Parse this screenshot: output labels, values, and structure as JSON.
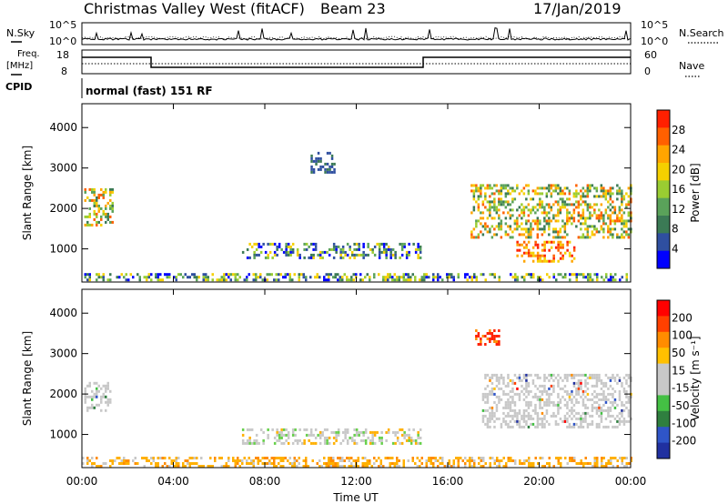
{
  "header": {
    "title": "Christmas Valley West (fitACF)",
    "beam": "Beam 23",
    "date": "17/Jan/2019"
  },
  "top_panels": {
    "nsky_label": "N.Sky",
    "nsearch_label": "N.Search",
    "nsky_ticks": [
      "10^5",
      "10^0"
    ],
    "nsearch_ticks": [
      "10^5",
      "10^0"
    ],
    "freq_label_1": "Freq.",
    "freq_label_2": "[MHz]",
    "freq_ticks": [
      "18",
      "8"
    ],
    "nave_label": "Nave",
    "nave_ticks": [
      "60",
      "0"
    ],
    "cpid_label": "CPID",
    "cpid_text": "normal (fast) 151 RF"
  },
  "colors": {
    "power": [
      "#0000ff",
      "#2f4fa0",
      "#3b7a55",
      "#5aa25a",
      "#9acd32",
      "#f5d000",
      "#ffa500",
      "#ff6000",
      "#ff2000"
    ],
    "velocity": [
      "#2030a0",
      "#2f55c8",
      "#2f7f3f",
      "#44c044",
      "#c8c8c8",
      "#c8c8c8",
      "#ffc000",
      "#ff8c00",
      "#ff4000",
      "#ff0000"
    ]
  },
  "chart_data": [
    {
      "type": "heatmap",
      "name": "power",
      "ylabel": "Slant Range [km]",
      "xlabel": "Time UT",
      "x_ticks": [
        "00:00",
        "04:00",
        "08:00",
        "12:00",
        "16:00",
        "20:00",
        "00:00"
      ],
      "y_ticks": [
        "1000",
        "2000",
        "3000",
        "4000"
      ],
      "ylim": [
        180,
        4590
      ],
      "xlim_hours": [
        0,
        24
      ],
      "colorbar": {
        "label": "Power [dB]",
        "ticks": [
          "28",
          "24",
          "20",
          "16",
          "12",
          "8",
          "4"
        ]
      },
      "echo_regions": [
        {
          "t0": 0.1,
          "t1": 1.3,
          "r0": 1600,
          "r1": 2500,
          "level": "mixed-high"
        },
        {
          "t0": 7.0,
          "t1": 14.8,
          "r0": 750,
          "r1": 1150,
          "level": "mixed"
        },
        {
          "t0": 10.0,
          "t1": 11.0,
          "r0": 2900,
          "r1": 3400,
          "level": "low"
        },
        {
          "t0": 17.0,
          "t1": 24.0,
          "r0": 1300,
          "r1": 2600,
          "level": "mixed-high"
        },
        {
          "t0": 19.0,
          "t1": 21.5,
          "r0": 700,
          "r1": 1200,
          "level": "high"
        },
        {
          "t0": 0.0,
          "t1": 24.0,
          "r0": 200,
          "r1": 400,
          "level": "mixed"
        }
      ]
    },
    {
      "type": "heatmap",
      "name": "velocity",
      "ylabel": "Slant Range [km]",
      "xlabel": "Time UT",
      "x_ticks": [
        "00:00",
        "04:00",
        "08:00",
        "12:00",
        "16:00",
        "20:00",
        "00:00"
      ],
      "y_ticks": [
        "1000",
        "2000",
        "3000",
        "4000"
      ],
      "ylim": [
        180,
        4590
      ],
      "xlim_hours": [
        0,
        24
      ],
      "colorbar": {
        "label": "Velocity [m s⁻¹]",
        "ticks": [
          "200",
          "100",
          "50",
          "15",
          "-15",
          "-50",
          "-100",
          "-200"
        ]
      },
      "echo_regions": [
        {
          "t0": 0.1,
          "t1": 1.2,
          "r0": 1600,
          "r1": 2300,
          "level": "grey"
        },
        {
          "t0": 7.0,
          "t1": 14.8,
          "r0": 750,
          "r1": 1150,
          "level": "grey-green"
        },
        {
          "t0": 17.2,
          "t1": 18.2,
          "r0": 3200,
          "r1": 3600,
          "level": "red"
        },
        {
          "t0": 17.5,
          "t1": 24.0,
          "r0": 1200,
          "r1": 2500,
          "level": "grey"
        },
        {
          "t0": 0.0,
          "t1": 24.0,
          "r0": 200,
          "r1": 450,
          "level": "orange"
        }
      ]
    }
  ]
}
